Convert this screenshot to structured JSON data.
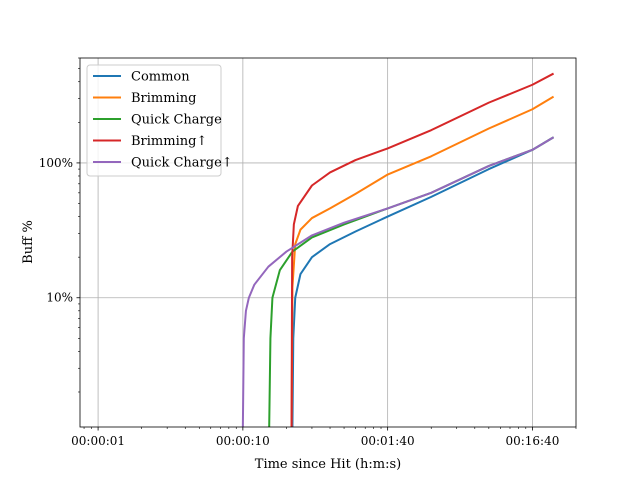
{
  "chart_data": {
    "type": "line",
    "xscale": "log",
    "yscale": "log",
    "xlabel": "Time since Hit (h:m:s)",
    "ylabel": "Buff %",
    "xlim_seconds": [
      0.75,
      2000
    ],
    "ylim_percent": [
      1.1,
      600
    ],
    "x_ticks": [
      {
        "seconds": 1,
        "label": "00:00:01"
      },
      {
        "seconds": 10,
        "label": "00:00:10"
      },
      {
        "seconds": 100,
        "label": "00:01:40"
      },
      {
        "seconds": 1000,
        "label": "00:16:40"
      }
    ],
    "y_ticks": [
      {
        "percent": 10,
        "label": "10%"
      },
      {
        "percent": 100,
        "label": "100%"
      }
    ],
    "grid": true,
    "legend_position": "top-left",
    "series": [
      {
        "name": "Common",
        "color": "#1f77b4",
        "points": [
          [
            22.0,
            1.1
          ],
          [
            22.3,
            5.0
          ],
          [
            23.0,
            10.0
          ],
          [
            25.0,
            15.0
          ],
          [
            30.0,
            20.0
          ],
          [
            40.0,
            25.0
          ],
          [
            60.0,
            31.0
          ],
          [
            100.0,
            40.0
          ],
          [
            200.0,
            56.0
          ],
          [
            500.0,
            90.0
          ],
          [
            1000.0,
            125.0
          ],
          [
            1400.0,
            155.0
          ]
        ]
      },
      {
        "name": "Brimming",
        "color": "#ff7f0e",
        "points": [
          [
            21.7,
            1.1
          ],
          [
            22.0,
            12.0
          ],
          [
            23.0,
            25.0
          ],
          [
            25.0,
            32.0
          ],
          [
            30.0,
            39.0
          ],
          [
            40.0,
            46.0
          ],
          [
            60.0,
            59.0
          ],
          [
            100.0,
            82.0
          ],
          [
            200.0,
            112.0
          ],
          [
            500.0,
            180.0
          ],
          [
            1000.0,
            250.0
          ],
          [
            1400.0,
            310.0
          ]
        ]
      },
      {
        "name": "Quick Charge",
        "color": "#2ca02c",
        "points": [
          [
            15.2,
            1.1
          ],
          [
            15.5,
            5.0
          ],
          [
            16.0,
            10.0
          ],
          [
            18.0,
            16.0
          ],
          [
            22.0,
            22.0
          ],
          [
            30.0,
            28.0
          ],
          [
            50.0,
            35.0
          ],
          [
            100.0,
            46.0
          ],
          [
            200.0,
            60.0
          ],
          [
            500.0,
            95.0
          ],
          [
            1000.0,
            125.0
          ],
          [
            1400.0,
            155.0
          ]
        ]
      },
      {
        "name": "Brimming↑",
        "color": "#d62728",
        "points": [
          [
            21.7,
            1.1
          ],
          [
            21.9,
            20.0
          ],
          [
            22.5,
            35.0
          ],
          [
            24.0,
            48.0
          ],
          [
            30.0,
            68.0
          ],
          [
            40.0,
            85.0
          ],
          [
            60.0,
            105.0
          ],
          [
            100.0,
            128.0
          ],
          [
            200.0,
            175.0
          ],
          [
            500.0,
            280.0
          ],
          [
            1000.0,
            380.0
          ],
          [
            1400.0,
            460.0
          ]
        ]
      },
      {
        "name": "Quick Charge↑",
        "color": "#9467bd",
        "points": [
          [
            10.0,
            1.1
          ],
          [
            10.15,
            5.0
          ],
          [
            10.5,
            8.0
          ],
          [
            11.0,
            10.0
          ],
          [
            12.0,
            12.5
          ],
          [
            15.0,
            17.0
          ],
          [
            20.0,
            22.0
          ],
          [
            30.0,
            29.0
          ],
          [
            50.0,
            36.0
          ],
          [
            100.0,
            46.0
          ],
          [
            200.0,
            60.0
          ],
          [
            500.0,
            95.0
          ],
          [
            1000.0,
            125.0
          ],
          [
            1400.0,
            155.0
          ]
        ]
      }
    ]
  }
}
